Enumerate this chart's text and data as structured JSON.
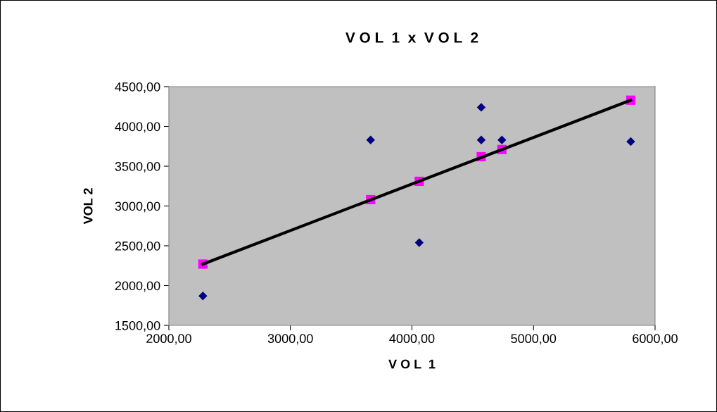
{
  "chart_data": {
    "type": "scatter",
    "title": "V O L  1  x  V O L  2",
    "xlabel": "V O L  1",
    "ylabel": "VOL 2",
    "series": [
      {
        "marker": "diamond",
        "color": "#000080",
        "x": [
          2280,
          3660,
          4060,
          4570,
          4570,
          4740,
          5800
        ],
        "values": [
          1870,
          3830,
          2540,
          4240,
          3830,
          3830,
          3810
        ]
      },
      {
        "marker": "square",
        "color": "#ff00ff",
        "x": [
          2280,
          3660,
          4060,
          4570,
          4740,
          5800
        ],
        "values": [
          2270,
          3080,
          3310,
          3620,
          3710,
          4330
        ]
      },
      {
        "type": "line",
        "marker": "none",
        "color": "#000000",
        "x": [
          2280,
          5800
        ],
        "values": [
          2270,
          4330
        ]
      }
    ],
    "xlim": [
      2000,
      6000
    ],
    "ylim": [
      1500,
      4500
    ],
    "xticks": [
      {
        "value": 2000,
        "label": "2000,00"
      },
      {
        "value": 3000,
        "label": "3000,00"
      },
      {
        "value": 4000,
        "label": "4000,00"
      },
      {
        "value": 5000,
        "label": "5000,00"
      },
      {
        "value": 6000,
        "label": "6000,00"
      }
    ],
    "yticks": [
      {
        "value": 1500,
        "label": "1500,00"
      },
      {
        "value": 2000,
        "label": "2000,00"
      },
      {
        "value": 2500,
        "label": "2500,00"
      },
      {
        "value": 3000,
        "label": "3000,00"
      },
      {
        "value": 3500,
        "label": "3500,00"
      },
      {
        "value": 4000,
        "label": "4000,00"
      },
      {
        "value": 4500,
        "label": "4500,00"
      }
    ],
    "grid": false,
    "legend": false
  }
}
